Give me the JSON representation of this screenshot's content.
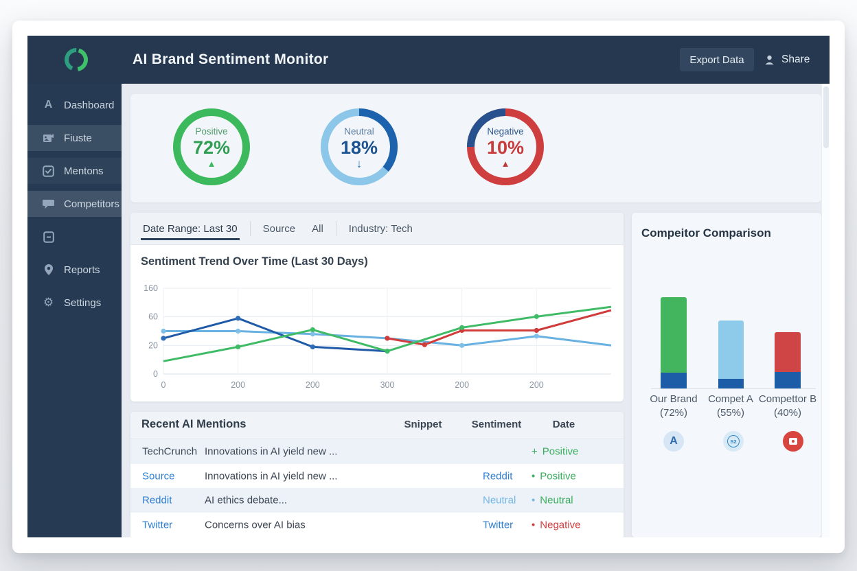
{
  "header": {
    "title": "AI Brand Sentiment Monitor",
    "export_label": "Export Data",
    "share_label": "Share"
  },
  "sidebar": {
    "items": [
      {
        "label": "Dashboard",
        "icon": "letter-a-icon"
      },
      {
        "label": "Fiuste",
        "icon": "image-flag-icon"
      },
      {
        "label": "Mentons",
        "icon": "checkbox-icon"
      },
      {
        "label": "Competitors",
        "icon": "chat-bubble-icon"
      },
      {
        "label": "",
        "icon": "note-icon"
      },
      {
        "label": "Reports",
        "icon": "pin-icon"
      },
      {
        "label": "Settings",
        "icon": "gear-icon"
      }
    ]
  },
  "gauges": [
    {
      "label": "Positive",
      "value": "72%",
      "arrow": "▲",
      "label_color": "#55a06e",
      "value_color": "#2f9e52",
      "ring_color": "#3cb95d",
      "arc": null,
      "arrow_color": "#3cb95d",
      "arrow_style": "up"
    },
    {
      "label": "Neutral",
      "value": "18%",
      "arrow": "↓",
      "label_color": "#5e80a0",
      "value_color": "#1d5391",
      "ring_color": "#8cc6e9",
      "arc": {
        "color": "#1d62ac",
        "start": 0,
        "end": 130
      },
      "arrow_color": "#2e76ba",
      "arrow_style": "down"
    },
    {
      "label": "Negative",
      "value": "10%",
      "arrow": "▲",
      "label_color": "#31598c",
      "value_color": "#c93a3a",
      "ring_color": "#ce3e3e",
      "arc": {
        "color": "#27508f",
        "start": 270,
        "end": 360
      },
      "arrow_color": "#c03a3a",
      "arrow_style": "up"
    }
  ],
  "filters": {
    "tab1": "Date Range: Last 30",
    "tab2_label": "Source",
    "tab2_value": "All",
    "tab3": "Industry: Tech"
  },
  "trend_chart": {
    "title": "Sentiment Trend Over Time (Last 30 Days)",
    "y_tick_values": [
      0,
      20,
      60,
      160
    ],
    "x_tick_labels": [
      "0",
      "200",
      "200",
      "300",
      "200",
      "200"
    ],
    "grid": true,
    "series": [
      {
        "name": "sky-line",
        "color": "#69b1e0",
        "marker_color": "#7fc0e8",
        "points": [
          [
            0,
            40
          ],
          [
            1,
            40
          ],
          [
            2,
            36
          ],
          [
            3,
            30
          ],
          [
            4,
            20
          ],
          [
            5,
            33
          ],
          [
            6,
            20
          ]
        ]
      },
      {
        "name": "navy-line",
        "color": "#1e5aa7",
        "marker_color": "#2d6cb8",
        "points": [
          [
            0,
            30
          ],
          [
            1,
            58
          ],
          [
            2,
            19
          ],
          [
            3,
            16
          ]
        ]
      },
      {
        "name": "red-line",
        "color": "#d03c3c",
        "marker_color": "#d03c3c",
        "points": [
          [
            3,
            30
          ],
          [
            3.5,
            21
          ],
          [
            4,
            41
          ],
          [
            5,
            41
          ],
          [
            6,
            83
          ]
        ]
      },
      {
        "name": "green-line",
        "color": "#3fbb66",
        "marker_color": "#3fbb66",
        "points": [
          [
            0,
            9
          ],
          [
            1,
            19
          ],
          [
            2,
            42
          ],
          [
            3,
            16
          ],
          [
            4,
            45
          ],
          [
            5,
            61
          ],
          [
            6,
            95
          ]
        ]
      }
    ]
  },
  "mentions": {
    "title": "Recent AI Mentions",
    "columns": [
      "Snippet",
      "Sentiment",
      "Date"
    ],
    "rows": [
      {
        "source": "TechCrunch",
        "source_color": "#3c4654",
        "snippet": "Innovations in AI yield new ...",
        "platform": "",
        "platform_color": "#2f7fd1",
        "prefix": "+",
        "prefix_color": "#3aae5c",
        "sentiment": "Positive",
        "sentiment_color": "#3aae5c"
      },
      {
        "source": "Source",
        "source_color": "#2f7fd1",
        "snippet": "Innovations in AI yield new ...",
        "platform": "Reddit",
        "platform_color": "#2f7fd1",
        "prefix": "•",
        "prefix_color": "#3aae5c",
        "sentiment": "Positive",
        "sentiment_color": "#3aae5c"
      },
      {
        "source": "Reddit",
        "source_color": "#2f7fd1",
        "snippet": "AI ethics debate...",
        "platform": "Neutral",
        "platform_color": "#74b7e6",
        "prefix": "•",
        "prefix_color": "#74b7e6",
        "sentiment": "Neutral",
        "sentiment_color": "#3aae5c"
      },
      {
        "source": "Twitter",
        "source_color": "#2f7fd1",
        "snippet": "Concerns over AI bias",
        "platform": "Twitter",
        "platform_color": "#2f7fd1",
        "prefix": "•",
        "prefix_color": "#cf3e3e",
        "sentiment": "Negative",
        "sentiment_color": "#cf3e3e"
      }
    ]
  },
  "competitor_panel": {
    "title": "Compeitor Comparison",
    "base_color": "#1d5da8",
    "bars": [
      {
        "label": "Our Brand",
        "pct_label": "(72%)",
        "pct": 72,
        "color": "#44b55f",
        "top_h": 110,
        "base_h": 23
      },
      {
        "label": "Compet A",
        "pct_label": "(55%)",
        "pct": 55,
        "color": "#8ecbeb",
        "top_h": 85,
        "base_h": 14
      },
      {
        "label": "Compettor B",
        "pct_label": "(40%)",
        "pct": 40,
        "color": "#cf4444",
        "top_h": 58,
        "base_h": 24
      }
    ],
    "badges": [
      {
        "glyph": "A",
        "type": "letter",
        "bg": "#d7e6f5",
        "fg": "#2f6cae"
      },
      {
        "glyph": "S2",
        "type": "circled",
        "bg": "#d9eaf7",
        "fg": "#2f85c4"
      },
      {
        "glyph": "",
        "type": "shape",
        "bg": "#d8453f",
        "fg": "#ffffff"
      }
    ]
  }
}
